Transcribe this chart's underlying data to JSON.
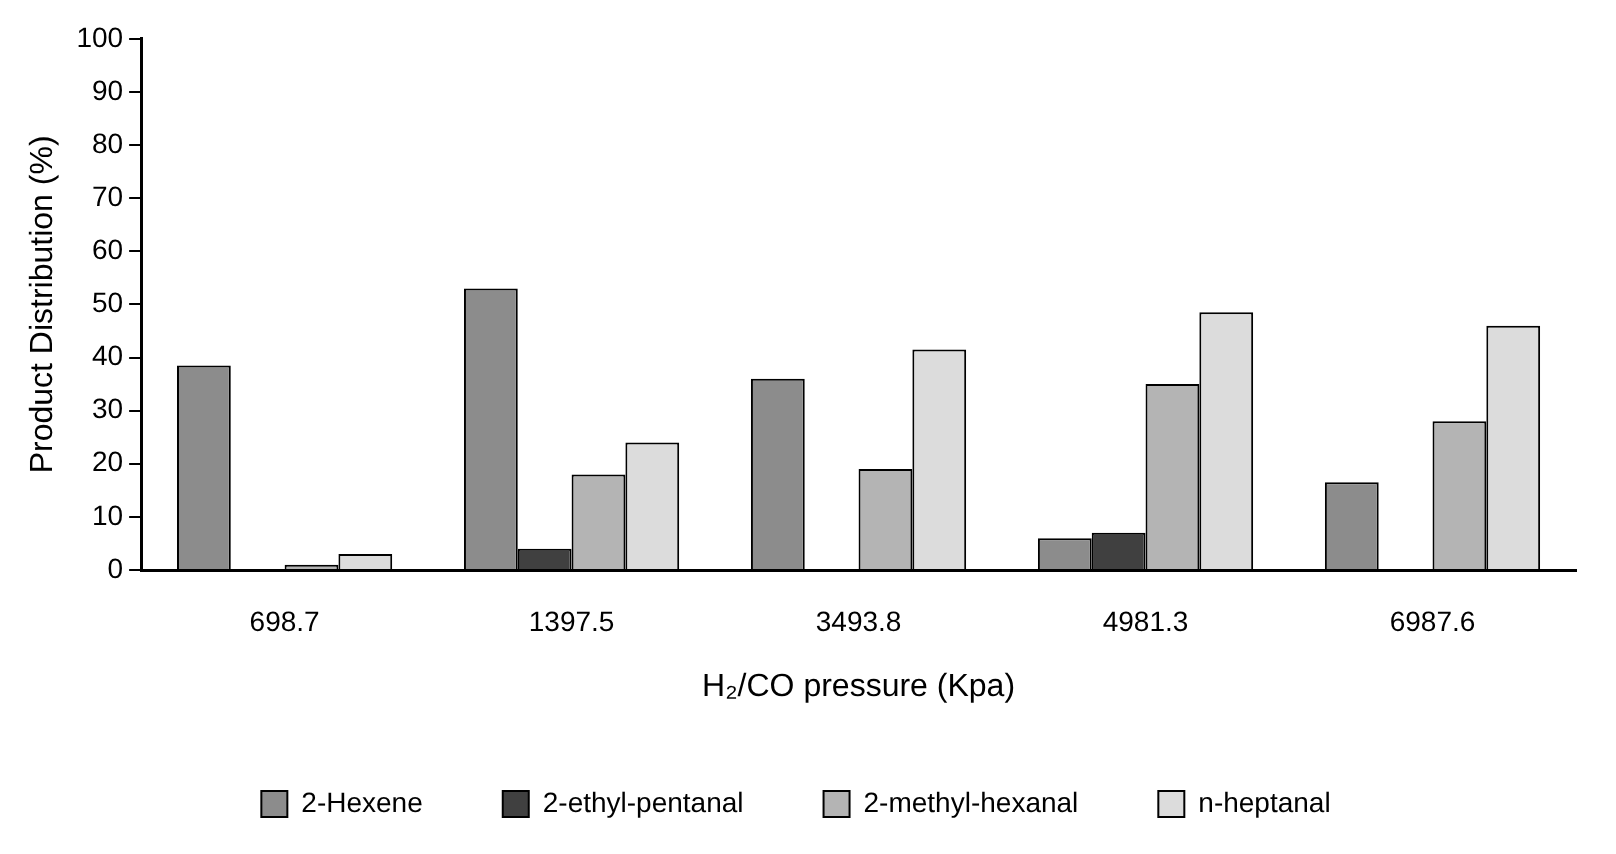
{
  "chart_data": {
    "type": "bar",
    "xlabel": "H₂/CO pressure (Kpa)",
    "ylabel": "Product Distribution (%)",
    "categories": [
      "698.7",
      "1397.5",
      "3493.8",
      "4981.3",
      "6987.6"
    ],
    "series": [
      {
        "name": "2-Hexene",
        "color": "#8c8c8c",
        "values": [
          38.5,
          53,
          36,
          6,
          16.5
        ]
      },
      {
        "name": "2-ethyl-pentanal",
        "color": "#404040",
        "values": [
          0,
          4,
          0,
          7,
          0
        ]
      },
      {
        "name": "2-methyl-hexanal",
        "color": "#b4b4b4",
        "values": [
          1,
          18,
          19,
          35,
          28
        ]
      },
      {
        "name": "n-heptanal",
        "color": "#dcdcdc",
        "values": [
          3,
          24,
          41.5,
          48.5,
          46
        ]
      }
    ],
    "ylim": [
      0,
      100
    ],
    "yticks": [
      0,
      10,
      20,
      30,
      40,
      50,
      60,
      70,
      80,
      90,
      100
    ],
    "grid": false,
    "legend": "bottom"
  }
}
